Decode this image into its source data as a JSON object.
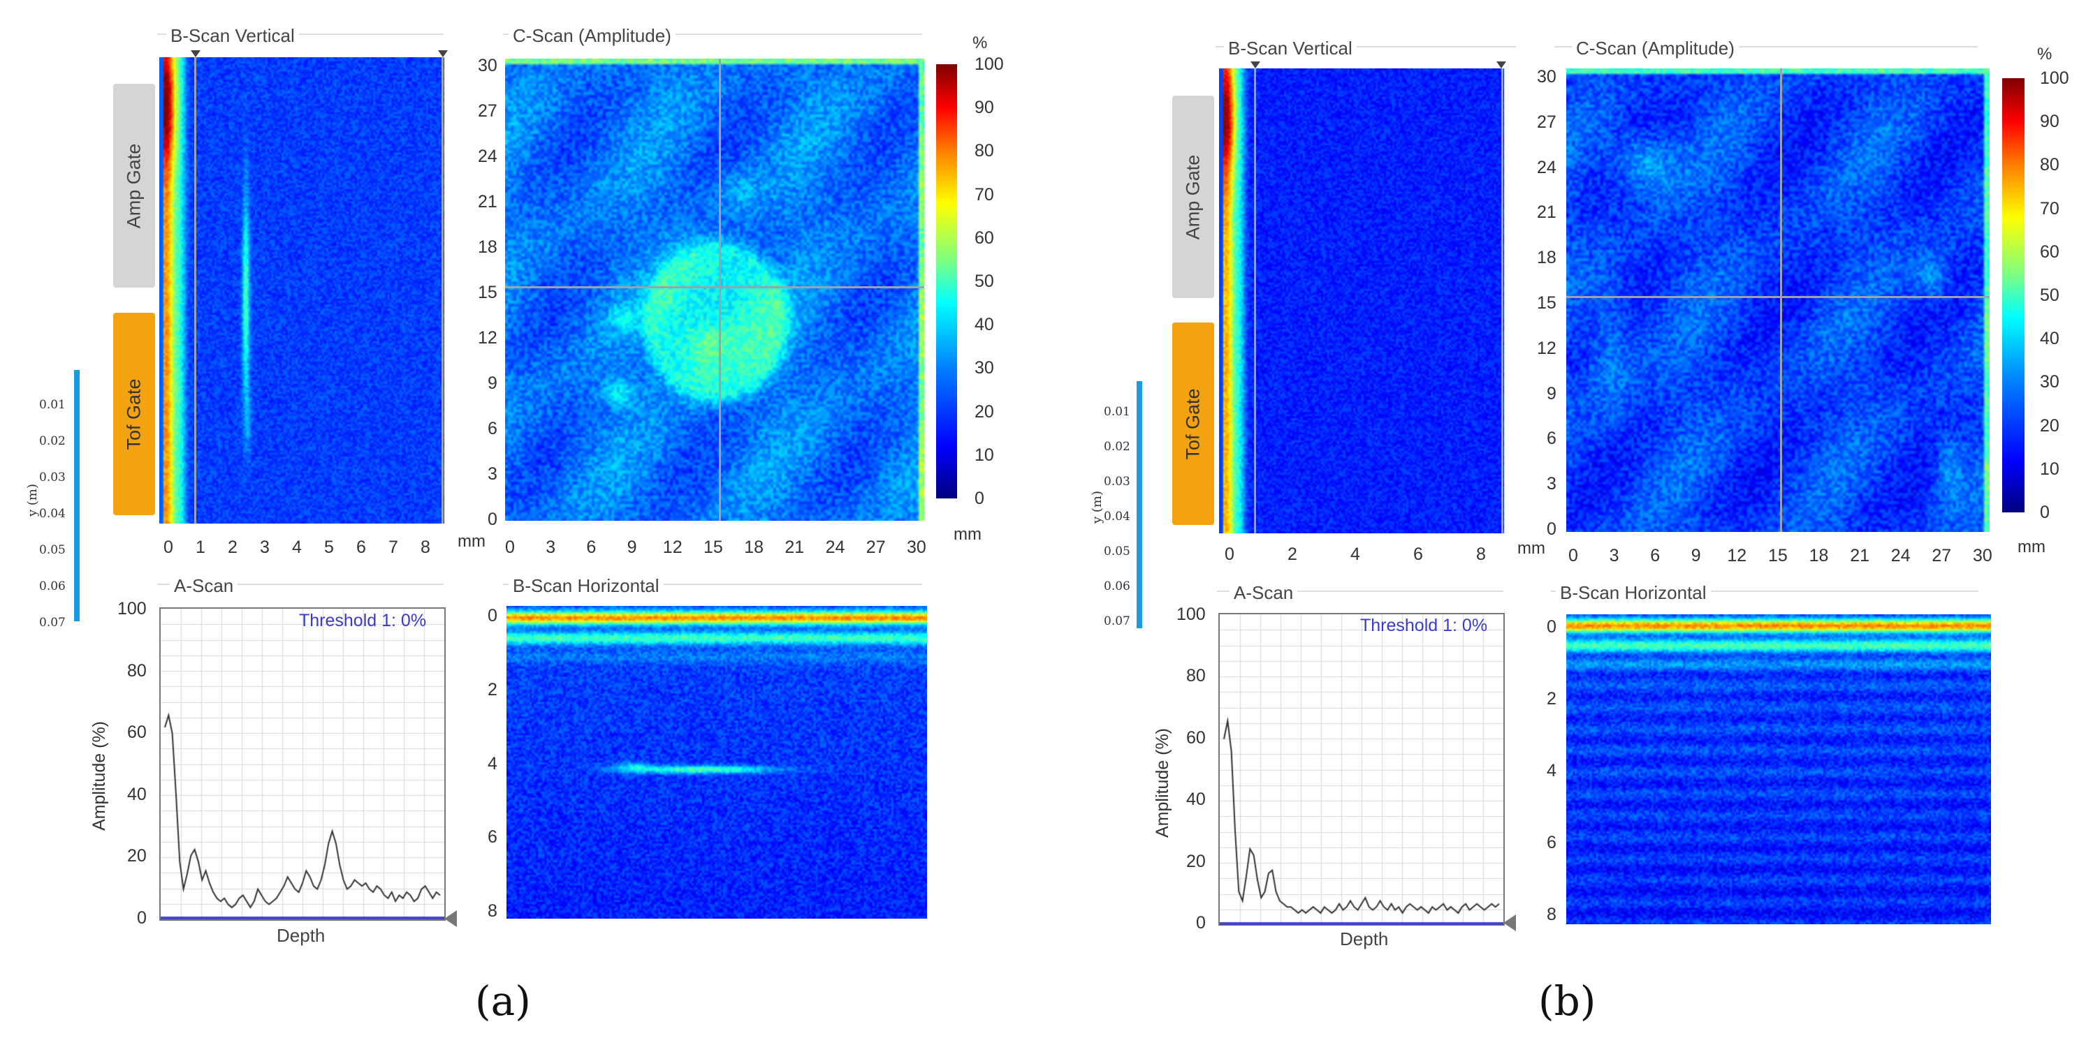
{
  "panels": [
    {
      "id": "a",
      "caption": "(a)",
      "bscan_vertical": {
        "title": "B-Scan Vertical",
        "x_ticks": [
          "0",
          "1",
          "2",
          "3",
          "4",
          "5",
          "6",
          "7",
          "8"
        ],
        "cursor_depth": 0.8,
        "defect": "vertical-line"
      },
      "gates": {
        "amp": "Amp Gate",
        "tof": "Tof Gate"
      },
      "y_axis": {
        "label": "y (m)",
        "ticks": [
          "0.01",
          "0.02",
          "0.03",
          "0.04",
          "0.05",
          "0.06",
          "0.07"
        ]
      },
      "cscan": {
        "title": "C-Scan (Amplitude)",
        "y_ticks": [
          "30",
          "27",
          "24",
          "21",
          "18",
          "15",
          "12",
          "9",
          "6",
          "3",
          "0"
        ],
        "x_ticks": [
          "0",
          "3",
          "6",
          "9",
          "12",
          "15",
          "18",
          "21",
          "24",
          "27",
          "30"
        ],
        "unit": "mm",
        "cursor_x_mm": 15.5,
        "cursor_y_mm": 16,
        "defect": "circle",
        "defect_center_mm": [
          15,
          13
        ],
        "defect_radius_mm": 4.5
      },
      "colorbar": {
        "unit": "%",
        "bottom_unit": "mm",
        "ticks": [
          "100",
          "90",
          "80",
          "70",
          "60",
          "50",
          "40",
          "30",
          "20",
          "10",
          "0"
        ]
      },
      "ascan": {
        "title": "A-Scan",
        "threshold": "Threshold 1: 0%",
        "y_ticks": [
          "100",
          "80",
          "60",
          "40",
          "20",
          "0"
        ],
        "ylabel": "Amplitude (%)",
        "xlabel": "Depth",
        "signal": [
          62,
          66,
          60,
          40,
          18,
          9,
          14,
          20,
          22,
          18,
          12,
          15,
          11,
          8,
          6,
          5,
          6,
          4,
          3,
          4,
          6,
          7,
          5,
          3,
          5,
          9,
          7,
          5,
          4,
          5,
          6,
          8,
          10,
          13,
          11,
          9,
          8,
          11,
          15,
          13,
          10,
          9,
          12,
          17,
          24,
          28,
          24,
          17,
          12,
          9,
          10,
          12,
          11,
          10,
          11,
          9,
          8,
          10,
          9,
          7,
          6,
          8,
          5,
          7,
          6,
          8,
          7,
          5,
          6,
          9,
          10,
          8,
          6,
          8,
          7
        ]
      },
      "bscan_horizontal": {
        "title": "B-Scan Horizontal",
        "y_ticks": [
          "0",
          "2",
          "4",
          "6",
          "8"
        ],
        "defect": "horizontal-line"
      }
    },
    {
      "id": "b",
      "caption": "(b)",
      "bscan_vertical": {
        "title": "B-Scan Vertical",
        "x_ticks": [
          "0",
          "2",
          "4",
          "6",
          "8"
        ],
        "cursor_depth": 0.8,
        "defect": "none"
      },
      "gates": {
        "amp": "Amp Gate",
        "tof": "Tof Gate"
      },
      "y_axis": {
        "label": "y (m)",
        "ticks": [
          "0.01",
          "0.02",
          "0.03",
          "0.04",
          "0.05",
          "0.06",
          "0.07"
        ]
      },
      "cscan": {
        "title": "C-Scan (Amplitude)",
        "y_ticks": [
          "30",
          "27",
          "24",
          "21",
          "18",
          "15",
          "12",
          "9",
          "6",
          "3",
          "0"
        ],
        "x_ticks": [
          "0",
          "3",
          "6",
          "9",
          "12",
          "15",
          "18",
          "21",
          "24",
          "27",
          "30"
        ],
        "unit": "mm",
        "cursor_x_mm": 15.5,
        "cursor_y_mm": 16,
        "defect": "none"
      },
      "colorbar": {
        "unit": "%",
        "bottom_unit": "mm",
        "ticks": [
          "100",
          "90",
          "80",
          "70",
          "60",
          "50",
          "40",
          "30",
          "20",
          "10",
          "0"
        ]
      },
      "ascan": {
        "title": "A-Scan",
        "threshold": "Threshold 1: 0%",
        "y_ticks": [
          "100",
          "80",
          "60",
          "40",
          "20",
          "0"
        ],
        "ylabel": "Amplitude (%)",
        "xlabel": "Depth",
        "signal": [
          60,
          66,
          56,
          30,
          10,
          7,
          15,
          24,
          22,
          14,
          8,
          10,
          16,
          17,
          10,
          7,
          6,
          5,
          5,
          4,
          3,
          4,
          3,
          4,
          5,
          4,
          3,
          5,
          4,
          3,
          4,
          6,
          4,
          5,
          7,
          5,
          4,
          6,
          8,
          5,
          4,
          5,
          7,
          5,
          4,
          6,
          4,
          5,
          3,
          5,
          6,
          5,
          4,
          5,
          4,
          3,
          5,
          4,
          5,
          6,
          4,
          5,
          4,
          3,
          5,
          6,
          4,
          5,
          6,
          5,
          4,
          5,
          6,
          5,
          6
        ]
      },
      "bscan_horizontal": {
        "title": "B-Scan Horizontal",
        "y_ticks": [
          "0",
          "2",
          "4",
          "6",
          "8"
        ],
        "defect": "none"
      }
    }
  ]
}
